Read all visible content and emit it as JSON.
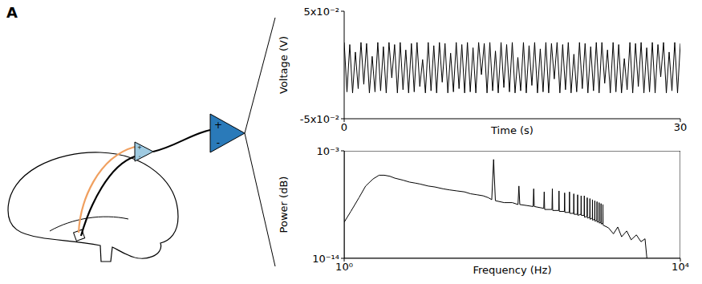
{
  "panel_label": "A",
  "diagram": {
    "headstage_signs": [
      "+",
      "-"
    ],
    "amplifier_signs": [
      "+",
      "-"
    ]
  },
  "chart_data": [
    {
      "type": "line",
      "x_label": "Time (s)",
      "y_label": "Voltage (V)",
      "color": "#000000",
      "xlim": [
        0,
        30
      ],
      "xticks": [
        0,
        30
      ],
      "ylim": [
        -0.05,
        0.05
      ],
      "yticks": [
        {
          "value": -0.05,
          "label": "-5x10⁻²"
        },
        {
          "value": 0.05,
          "label": "5x10⁻²"
        }
      ],
      "x": [
        0,
        0.25,
        0.5,
        0.75,
        1,
        1.25,
        1.5,
        1.75,
        2,
        2.25,
        2.5,
        2.75,
        3,
        3.25,
        3.5,
        3.75,
        4,
        4.25,
        4.5,
        4.75,
        5,
        5.25,
        5.5,
        5.75,
        6,
        6.25,
        6.5,
        6.75,
        7,
        7.25,
        7.5,
        7.75,
        8,
        8.25,
        8.5,
        8.75,
        9,
        9.25,
        9.5,
        9.75,
        10,
        10.25,
        10.5,
        10.75,
        11,
        11.25,
        11.5,
        11.75,
        12,
        12.25,
        12.5,
        12.75,
        13,
        13.25,
        13.5,
        13.75,
        14,
        14.25,
        14.5,
        14.75,
        15,
        15.25,
        15.5,
        15.75,
        16,
        16.25,
        16.5,
        16.75,
        17,
        17.25,
        17.5,
        17.75,
        18,
        18.25,
        18.5,
        18.75,
        19,
        19.25,
        19.5,
        19.75,
        20,
        20.25,
        20.5,
        20.75,
        21,
        21.25,
        21.5,
        21.75,
        22,
        22.25,
        22.5,
        22.75,
        23,
        23.25,
        23.5,
        23.75,
        24,
        24.25,
        24.5,
        24.75,
        25,
        25.25,
        25.5,
        25.75,
        26,
        26.25,
        26.5,
        26.75,
        27,
        27.25,
        27.5,
        27.75,
        28,
        28.25,
        28.5,
        28.75,
        29,
        29.25,
        29.5,
        29.75,
        30
      ],
      "values": [
        0.021,
        -0.025,
        0.019,
        -0.026,
        0.012,
        -0.022,
        0.021,
        -0.018,
        0.02,
        -0.026,
        0.008,
        -0.025,
        0.021,
        -0.024,
        0.017,
        -0.026,
        0.021,
        -0.012,
        0.019,
        -0.026,
        0.021,
        -0.023,
        0.014,
        -0.026,
        0.02,
        -0.025,
        0.021,
        -0.02,
        0.005,
        -0.026,
        0.021,
        -0.024,
        0.018,
        -0.026,
        0.021,
        -0.016,
        0.02,
        -0.026,
        0.011,
        -0.025,
        0.021,
        -0.022,
        0.019,
        -0.026,
        0.021,
        -0.025,
        0.016,
        -0.026,
        0.021,
        -0.009,
        0.02,
        -0.026,
        0.021,
        -0.024,
        0.013,
        -0.026,
        0.021,
        -0.021,
        0.019,
        -0.025,
        0.021,
        -0.026,
        0.007,
        -0.024,
        0.021,
        -0.026,
        0.018,
        -0.019,
        0.021,
        -0.026,
        0.015,
        -0.025,
        0.021,
        -0.026,
        0.02,
        -0.013,
        0.021,
        -0.026,
        0.019,
        -0.023,
        0.021,
        -0.026,
        0.01,
        -0.025,
        0.021,
        -0.022,
        0.02,
        -0.026,
        0.017,
        -0.024,
        0.021,
        -0.026,
        0.021,
        -0.017,
        0.014,
        -0.026,
        0.021,
        -0.025,
        0.019,
        -0.026,
        0.006,
        -0.023,
        0.021,
        -0.026,
        0.02,
        -0.02,
        0.021,
        -0.026,
        0.016,
        -0.025,
        0.021,
        -0.026,
        0.019,
        -0.011,
        0.021,
        -0.026,
        0.012,
        -0.024,
        0.021,
        -0.026,
        0.02
      ]
    },
    {
      "type": "line",
      "log": true,
      "x_label": "Frequency (Hz)",
      "y_label": "Power (dB)",
      "color": "#000000",
      "xlim": [
        1,
        10000
      ],
      "xticks": [
        {
          "value": 1,
          "label": "10⁰"
        },
        {
          "value": 10000,
          "label": "10⁴"
        }
      ],
      "ylim": [
        1e-14,
        0.001
      ],
      "yticks": [
        {
          "value": 1e-14,
          "label": "10⁻¹⁴"
        },
        {
          "value": 0.001,
          "label": "10⁻³"
        }
      ],
      "x": [
        1,
        1.2,
        1.5,
        1.8,
        2.2,
        2.6,
        3,
        3.5,
        4,
        5,
        6,
        7,
        8,
        10,
        12,
        15,
        18,
        22,
        27,
        32,
        38,
        45,
        52,
        57,
        60,
        63,
        80,
        100,
        117,
        120,
        123,
        150,
        177,
        180,
        183,
        237,
        240,
        243,
        297,
        300,
        303,
        357,
        360,
        363,
        417,
        420,
        423,
        477,
        480,
        483,
        537,
        540,
        543,
        597,
        600,
        603,
        657,
        660,
        663,
        717,
        720,
        723,
        777,
        780,
        783,
        837,
        840,
        843,
        897,
        900,
        903,
        957,
        960,
        963,
        1017,
        1020,
        1023,
        1077,
        1080,
        1083,
        1137,
        1140,
        1143,
        1197,
        1200,
        1203,
        1400,
        1600,
        1800,
        2000,
        2300,
        2600,
        3000,
        3400,
        3800,
        4000
      ],
      "values": [
        5e-11,
        6.3e-10,
        1.6e-08,
        2.5e-07,
        1.3e-06,
        3.2e-06,
        3.2e-06,
        2.5e-06,
        1.6e-06,
        1e-06,
        6.3e-07,
        5e-07,
        4e-07,
        2.5e-07,
        2e-07,
        1.3e-07,
        1e-07,
        7.9e-08,
        6.3e-08,
        4e-08,
        3.2e-08,
        2.5e-08,
        1.6e-08,
        1e-08,
        0.00013,
        7.9e-09,
        5e-09,
        5e-09,
        3.2e-09,
        2.5e-07,
        3.2e-09,
        2.5e-09,
        2e-09,
        1.3e-07,
        2e-09,
        1.3e-09,
        6.3e-08,
        1e-09,
        1e-09,
        1.3e-07,
        7.9e-10,
        7.9e-10,
        7.9e-08,
        6.3e-10,
        6.3e-10,
        5e-08,
        5e-10,
        5e-10,
        6.3e-08,
        4e-10,
        4e-10,
        4e-08,
        3.2e-10,
        3.2e-10,
        3.2e-08,
        2.5e-10,
        3.2e-10,
        2.5e-08,
        2.5e-10,
        2.5e-10,
        2.5e-08,
        1.6e-10,
        2e-10,
        1.6e-08,
        1.3e-10,
        1.6e-10,
        1.3e-08,
        1e-10,
        1.3e-10,
        1e-08,
        7.9e-11,
        1e-10,
        7.9e-09,
        6.3e-11,
        7.9e-11,
        6.3e-09,
        5e-11,
        6.3e-11,
        5e-09,
        4e-11,
        5e-11,
        4e-09,
        3.2e-11,
        4e-11,
        3.2e-09,
        2.5e-11,
        1.3e-11,
        3.2e-12,
        1.6e-11,
        1.6e-12,
        6.3e-12,
        7.9e-13,
        2.5e-12,
        5e-13,
        1e-12,
        1e-14
      ]
    }
  ]
}
